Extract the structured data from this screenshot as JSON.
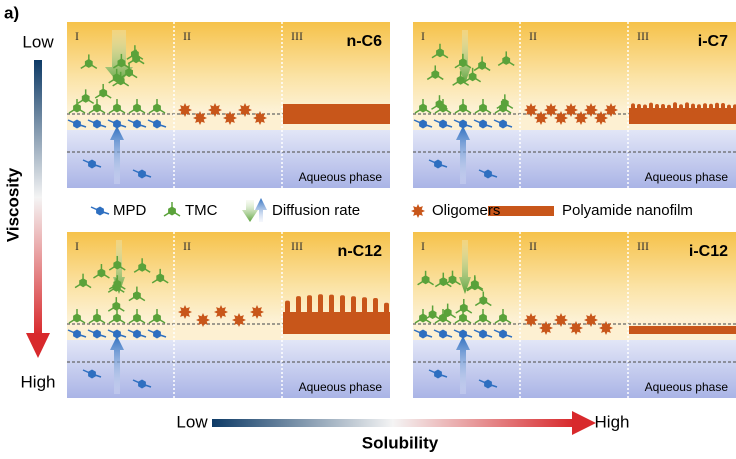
{
  "panel_label": "a)",
  "y_axis": {
    "low": "Low",
    "title": "Viscosity",
    "high": "High"
  },
  "x_axis": {
    "low": "Low",
    "title": "Solubility",
    "high": "High"
  },
  "panels": [
    {
      "label": "n-C6",
      "stages": [
        "I",
        "II",
        "III"
      ],
      "aqueous": "Aqueous phase"
    },
    {
      "label": "i-C7",
      "stages": [
        "I",
        "II",
        "III"
      ],
      "aqueous": "Aqueous phase"
    },
    {
      "label": "n-C12",
      "stages": [
        "I",
        "II",
        "III"
      ],
      "aqueous": "Aqueous phase"
    },
    {
      "label": "i-C12",
      "stages": [
        "I",
        "II",
        "III"
      ],
      "aqueous": "Aqueous phase"
    }
  ],
  "legend": {
    "mpd": "MPD",
    "tmc": "TMC",
    "diffusion": "Diffusion rate",
    "oligomers": "Oligomers",
    "film": "Polyamide nanofilm"
  }
}
